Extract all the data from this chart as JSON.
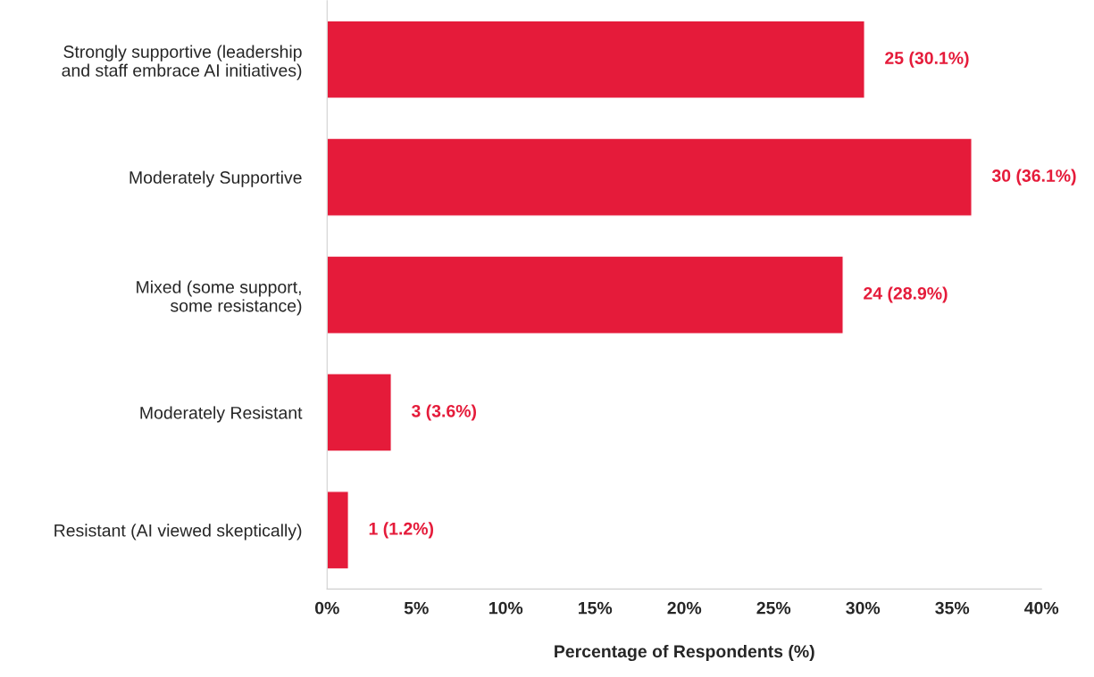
{
  "chart_data": {
    "type": "bar",
    "orientation": "horizontal",
    "xlabel": "Percentage of Respondents (%)",
    "categories": [
      "Strongly supportive (leadership\nand staff embrace AI initiatives)",
      "Moderately Supportive",
      "Mixed (some support,\nsome resistance)",
      "Moderately Resistant",
      "Resistant (AI viewed skeptically)"
    ],
    "values": [
      30.1,
      36.1,
      28.9,
      3.6,
      1.2
    ],
    "value_labels": [
      "25 (30.1%)",
      "30 (36.1%)",
      "24 (28.9%)",
      "3 (3.6%)",
      "1 (1.2%)"
    ],
    "color": "#e51b3a",
    "xlim": [
      0,
      40
    ],
    "xticks": [
      {
        "value": 0,
        "label": "0%"
      },
      {
        "value": 5,
        "label": "5%"
      },
      {
        "value": 10,
        "label": "10%"
      },
      {
        "value": 15,
        "label": "15%"
      },
      {
        "value": 20,
        "label": "20%"
      },
      {
        "value": 25,
        "label": "25%"
      },
      {
        "value": 30,
        "label": "30%"
      },
      {
        "value": 35,
        "label": "35%"
      },
      {
        "value": 40,
        "label": "40%"
      }
    ],
    "grid": false,
    "legend": false
  }
}
